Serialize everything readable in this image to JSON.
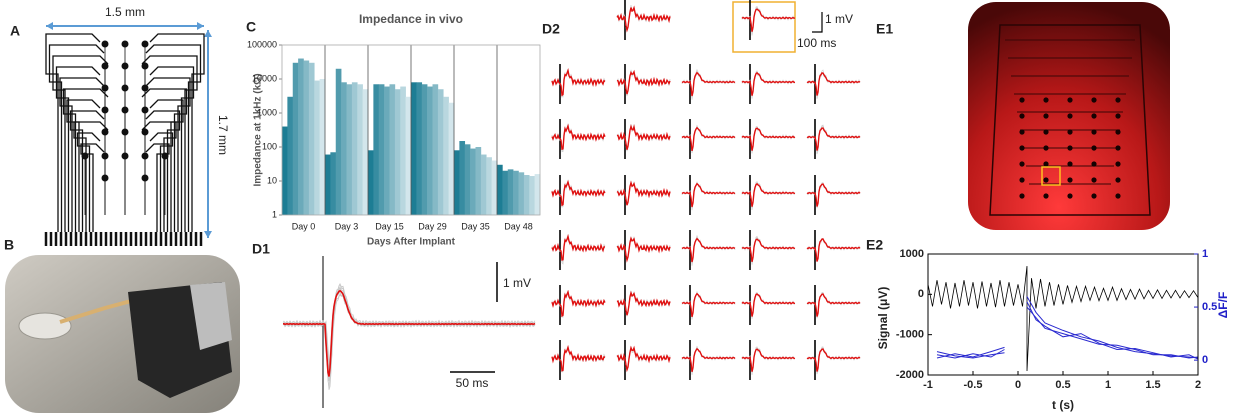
{
  "figure": {
    "panel_labels": [
      "A",
      "B",
      "C",
      "D1",
      "D2",
      "E1",
      "E2"
    ],
    "scale_labels": [
      "1.5 mm",
      "1.7 mm",
      "1 mV",
      "50 ms",
      "1 mV",
      "100 ms"
    ]
  },
  "chart_data": [
    {
      "type": "bar",
      "title": "Impedance in vivo",
      "ylabel": "Impedance at 1kHz (kΩ)",
      "xlabel": "Days After Implant",
      "log_scale": true,
      "colors": [
        "#1d7d94",
        "#d3e6ec"
      ],
      "categories": [
        "Day 0",
        "Day 3",
        "Day 15",
        "Day 29",
        "Day 35",
        "Day 48"
      ],
      "values": [
        [
          400,
          3000,
          30000,
          40000,
          35000,
          30000,
          9000,
          10000
        ],
        [
          60,
          70,
          20000,
          8000,
          7000,
          8000,
          7000,
          5000
        ],
        [
          80,
          7000,
          7000,
          6000,
          7000,
          5000,
          6000,
          3000
        ],
        [
          8000,
          8000,
          7000,
          6000,
          7000,
          5000,
          3000,
          2000
        ],
        [
          80,
          150,
          120,
          90,
          100,
          60,
          50,
          40
        ],
        [
          30,
          20,
          22,
          20,
          18,
          15,
          14,
          16
        ]
      ],
      "ylim": [
        1,
        100000
      ],
      "yticks": [
        1,
        10,
        100,
        1000,
        10000,
        100000
      ]
    },
    {
      "type": "line",
      "xlabel": "t (s)",
      "ylabel": "Signal (μV)",
      "y2label": "ΔF/F",
      "xlim": [
        -1,
        2
      ],
      "xticks": [
        -1,
        -0.5,
        0,
        0.5,
        1,
        1.5,
        2
      ],
      "ylim": [
        -2000,
        1000
      ],
      "yticks": [
        -2000,
        -1000,
        0,
        1000
      ],
      "y2lim": [
        -0.14,
        1
      ],
      "y2ticks": [
        0,
        0.5,
        1
      ],
      "series": [
        {
          "color": "#000000",
          "axis": "y",
          "x": [
            -1,
            -0.95,
            -0.9,
            -0.85,
            -0.8,
            -0.75,
            -0.7,
            -0.65,
            -0.6,
            -0.55,
            -0.5,
            -0.45,
            -0.4,
            -0.35,
            -0.3,
            -0.25,
            -0.2,
            -0.15,
            -0.1,
            -0.05,
            0,
            0.05,
            0.1,
            0.1,
            0.15,
            0.2,
            0.25,
            0.3,
            0.35,
            0.4,
            0.45,
            0.5,
            0.55,
            0.6,
            0.65,
            0.7,
            0.75,
            0.8,
            0.85,
            0.9,
            0.95,
            1,
            1.05,
            1.1,
            1.15,
            1.2,
            1.25,
            1.3,
            1.35,
            1.4,
            1.45,
            1.5,
            1.55,
            1.6,
            1.65,
            1.7,
            1.75,
            1.8,
            1.85,
            1.9,
            1.95,
            2
          ],
          "values": [
            250,
            -300,
            350,
            -250,
            300,
            -350,
            280,
            -300,
            350,
            -280,
            300,
            -350,
            320,
            -300,
            280,
            -320,
            350,
            -300,
            300,
            -280,
            250,
            -300,
            700,
            -1900,
            400,
            -350,
            380,
            -300,
            300,
            -280,
            250,
            -250,
            220,
            -200,
            200,
            -180,
            200,
            -150,
            180,
            -160,
            150,
            -150,
            180,
            -150,
            140,
            -130,
            120,
            -120,
            130,
            -110,
            100,
            -100,
            110,
            -100,
            100,
            -90,
            100,
            -90,
            90,
            -80,
            90,
            -80
          ]
        },
        {
          "color": "#2a2ad0",
          "axis": "y2",
          "x": [
            -0.9,
            -0.7,
            -0.5,
            -0.3,
            -0.15,
            0,
            0.1,
            0.2,
            0.3,
            0.5,
            0.7,
            0.9,
            1.1,
            1.3,
            1.5,
            1.7,
            1.9,
            2
          ],
          "values": [
            0.05,
            0.02,
            0.06,
            0.03,
            0.1,
            null,
            0.6,
            0.45,
            0.35,
            0.28,
            0.22,
            0.18,
            0.12,
            0.08,
            0.06,
            0.04,
            0.03,
            0.02
          ]
        },
        {
          "color": "#2a2ad0",
          "axis": "y2",
          "x": [
            -0.9,
            -0.7,
            -0.5,
            -0.3,
            -0.15,
            0,
            0.1,
            0.2,
            0.3,
            0.5,
            0.7,
            0.9,
            1.1,
            1.3,
            1.5,
            1.7,
            1.9,
            2
          ],
          "values": [
            0.02,
            0.06,
            0.03,
            0.08,
            0.12,
            null,
            0.5,
            0.4,
            0.3,
            0.25,
            0.2,
            0.15,
            0.14,
            0.1,
            0.05,
            0.05,
            0.02,
            0.03
          ]
        },
        {
          "color": "#2a2ad0",
          "axis": "y2",
          "x": [
            -0.9,
            -0.7,
            -0.5,
            -0.3,
            -0.15,
            0,
            0.1,
            0.2,
            0.3,
            0.5,
            0.7,
            0.9,
            1.1,
            1.3,
            1.5,
            1.7,
            1.9,
            2
          ],
          "values": [
            0.08,
            0.04,
            0.02,
            0.05,
            0.07,
            null,
            0.55,
            0.38,
            0.32,
            0.22,
            0.25,
            0.16,
            0.1,
            0.11,
            0.07,
            0.03,
            0.05,
            0.01
          ]
        }
      ]
    }
  ]
}
